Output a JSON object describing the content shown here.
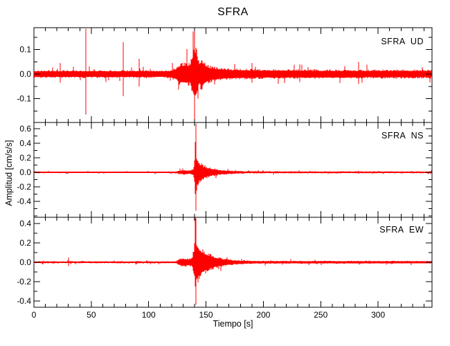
{
  "title": "SFRA",
  "colors": {
    "trace": "#ff0000",
    "frame": "#000000",
    "background": "#ffffff",
    "text": "#000000"
  },
  "chart_data": {
    "type": "line",
    "title": "SFRA",
    "ylabel": "Amplitud [cm/s/s]",
    "grid": false,
    "legend": "none",
    "x_axis": {
      "label": "Tiempo [s]",
      "range": [
        0,
        347
      ],
      "major_ticks": [
        0,
        50,
        100,
        150,
        200,
        250,
        300
      ],
      "minor_step": 10
    },
    "panels": [
      {
        "label": "SFRA  UD",
        "station": "SFRA",
        "component": "UD",
        "ylim": [
          -0.197,
          0.189
        ],
        "y_major_ticks": [
          0.1,
          0.0,
          -0.1
        ],
        "y_minor_step": 0.05,
        "noise_envelope": [
          [
            0,
            0.016
          ],
          [
            118,
            0.016
          ],
          [
            124,
            0.028
          ],
          [
            127,
            0.045
          ],
          [
            133,
            0.05
          ],
          [
            136,
            0.045
          ],
          [
            138,
            0.09
          ],
          [
            140,
            0.13
          ],
          [
            142,
            0.11
          ],
          [
            144,
            0.05
          ],
          [
            146,
            0.07
          ],
          [
            149,
            0.05
          ],
          [
            153,
            0.035
          ],
          [
            158,
            0.03
          ],
          [
            165,
            0.024
          ],
          [
            200,
            0.02
          ],
          [
            347,
            0.018
          ]
        ],
        "spikes": [
          {
            "t": 23,
            "up": 0.045,
            "down": -0.035
          },
          {
            "t": 45,
            "up": 0.185,
            "down": -0.165
          },
          {
            "t": 78,
            "up": 0.13,
            "down": -0.09
          },
          {
            "t": 92,
            "up": 0.062,
            "down": -0.05
          },
          {
            "t": 140,
            "up": 0.15,
            "down": -0.185
          },
          {
            "t": 190,
            "up": 0.045,
            "down": -0.035
          },
          {
            "t": 232,
            "up": 0.04,
            "down": -0.032
          },
          {
            "t": 283,
            "up": 0.05,
            "down": -0.04
          }
        ],
        "seed": 11
      },
      {
        "label": "SFRA  NS",
        "station": "SFRA",
        "component": "NS",
        "ylim": [
          -0.619,
          0.686
        ],
        "y_major_ticks": [
          0.6,
          0.4,
          0.2,
          0.0,
          -0.2,
          -0.4
        ],
        "y_minor_step": 0.1,
        "noise_envelope": [
          [
            0,
            0.012
          ],
          [
            124,
            0.012
          ],
          [
            126,
            0.025
          ],
          [
            131,
            0.035
          ],
          [
            136,
            0.028
          ],
          [
            139,
            0.05
          ],
          [
            140,
            0.18
          ],
          [
            141,
            0.33
          ],
          [
            142,
            0.25
          ],
          [
            144,
            0.16
          ],
          [
            147,
            0.11
          ],
          [
            151,
            0.08
          ],
          [
            156,
            0.055
          ],
          [
            162,
            0.04
          ],
          [
            170,
            0.025
          ],
          [
            185,
            0.016
          ],
          [
            347,
            0.013
          ]
        ],
        "spikes": [
          {
            "t": 140.4,
            "up": 0.42,
            "down": -0.3
          },
          {
            "t": 141,
            "up": 0.67,
            "down": -0.53
          }
        ],
        "seed": 22
      },
      {
        "label": "SFRA  EW",
        "station": "SFRA",
        "component": "EW",
        "ylim": [
          -0.464,
          0.464
        ],
        "y_major_ticks": [
          0.4,
          0.2,
          0.0,
          -0.2,
          -0.4
        ],
        "y_minor_step": 0.1,
        "noise_envelope": [
          [
            0,
            0.011
          ],
          [
            124,
            0.011
          ],
          [
            126,
            0.035
          ],
          [
            130,
            0.05
          ],
          [
            134,
            0.04
          ],
          [
            138,
            0.05
          ],
          [
            140,
            0.2
          ],
          [
            141,
            0.3
          ],
          [
            142,
            0.24
          ],
          [
            145,
            0.16
          ],
          [
            149,
            0.12
          ],
          [
            154,
            0.085
          ],
          [
            159,
            0.06
          ],
          [
            166,
            0.04
          ],
          [
            175,
            0.025
          ],
          [
            190,
            0.016
          ],
          [
            347,
            0.013
          ]
        ],
        "spikes": [
          {
            "t": 30,
            "up": 0.05,
            "down": -0.04
          },
          {
            "t": 140.4,
            "up": 0.3,
            "down": -0.25
          },
          {
            "t": 141,
            "up": 0.455,
            "down": -0.44
          }
        ],
        "seed": 33
      }
    ]
  }
}
